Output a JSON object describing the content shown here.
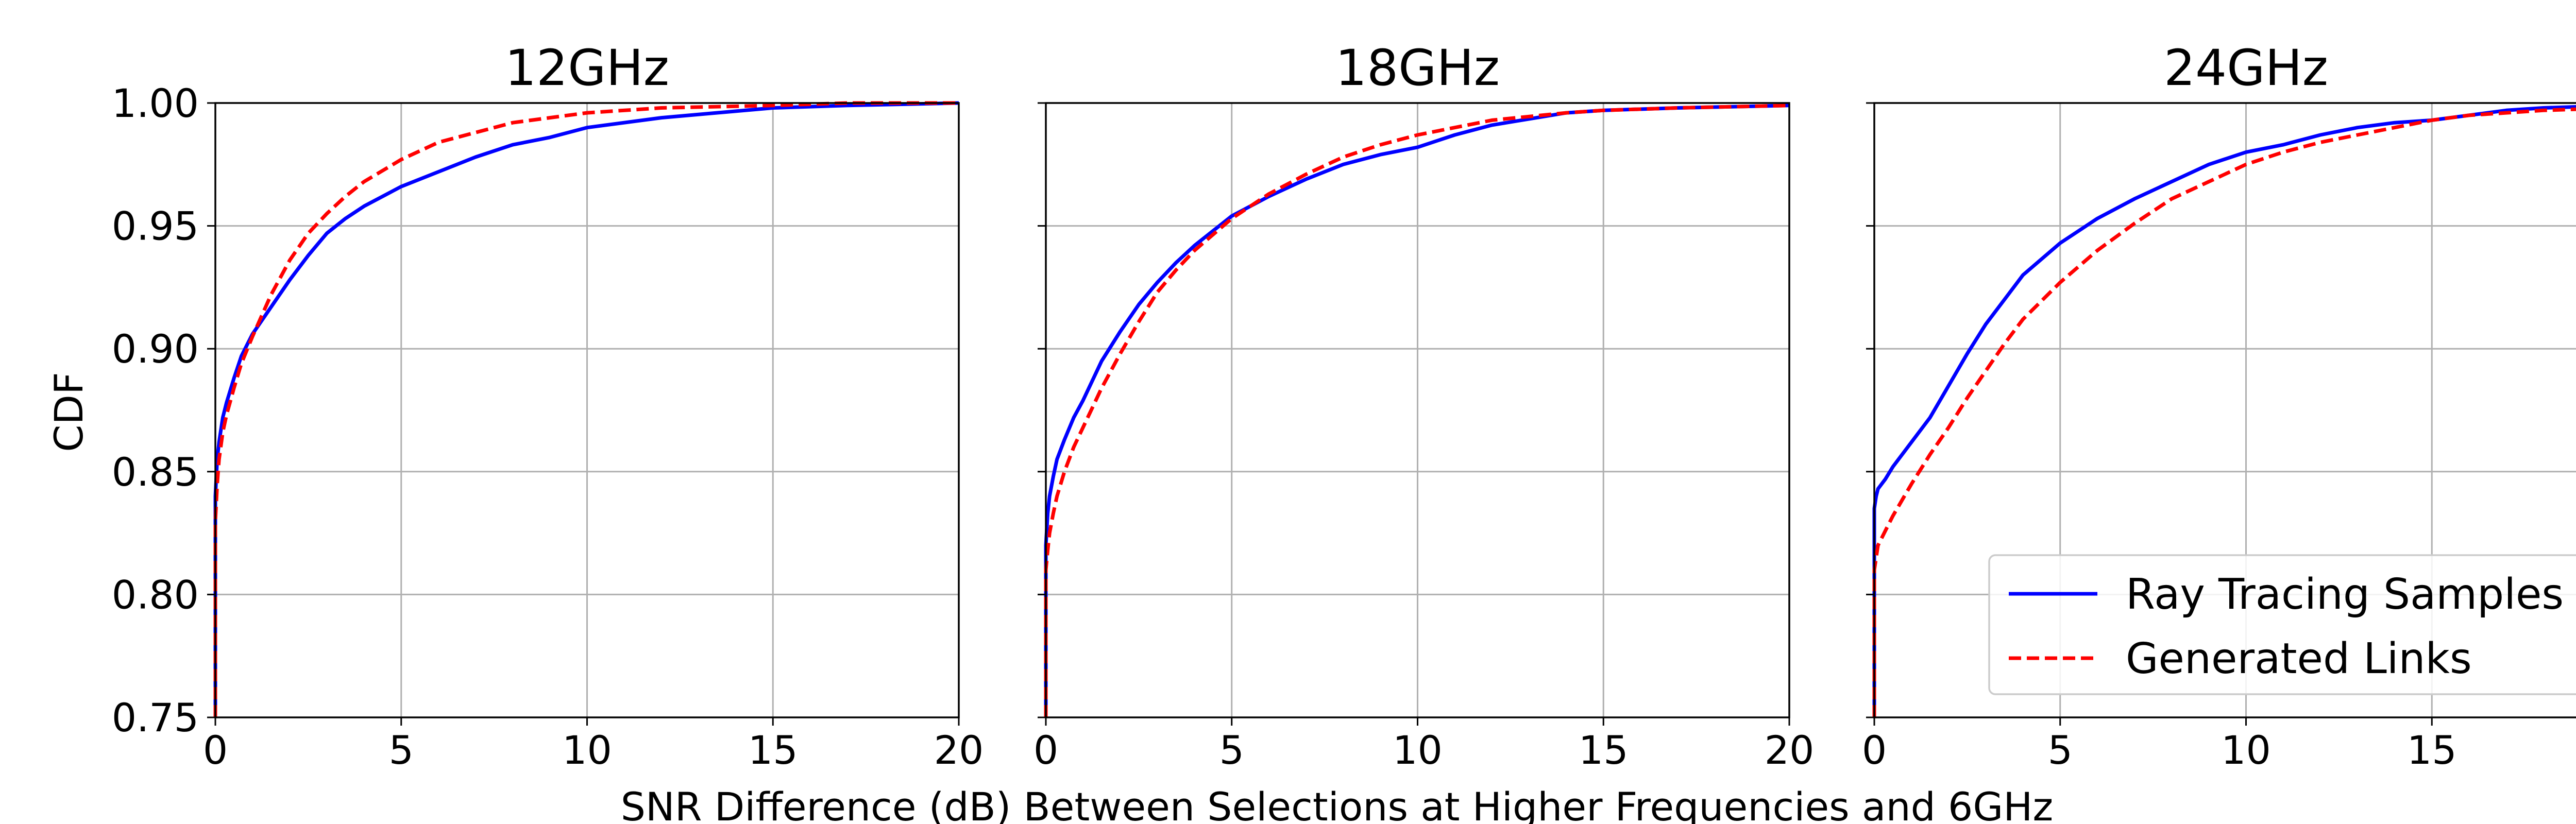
{
  "chart_data": {
    "type": "line",
    "xlabel": "SNR Difference (dB) Between Selections at Higher Frequencies and 6GHz",
    "ylabel": "CDF",
    "xlim": [
      0,
      20
    ],
    "ylim": [
      0.75,
      1.0
    ],
    "xticks": [
      "0",
      "5",
      "10",
      "15",
      "20"
    ],
    "yticks": [
      "0.75",
      "0.80",
      "0.85",
      "0.90",
      "0.95",
      "1.00"
    ],
    "grid": true,
    "sharey": true,
    "legend": {
      "placement": "lower-right",
      "panel": 2,
      "entries": [
        "Ray Tracing Samples",
        "Generated Links"
      ]
    },
    "series_styles": [
      {
        "name": "Ray Tracing Samples",
        "color": "#0000ff",
        "dash": "solid"
      },
      {
        "name": "Generated Links",
        "color": "#ff0000",
        "dash": "dashed"
      }
    ],
    "panels": [
      {
        "title": "12GHz",
        "series": [
          {
            "name": "Ray Tracing Samples",
            "x": [
              0,
              0,
              0.05,
              0.1,
              0.2,
              0.3,
              0.5,
              0.7,
              1.0,
              1.5,
              2.0,
              2.5,
              3.0,
              3.5,
              4.0,
              5.0,
              6.0,
              7.0,
              8.0,
              9.0,
              10.0,
              12.0,
              15.0,
              17.0,
              20.0
            ],
            "y": [
              0.75,
              0.84,
              0.855,
              0.862,
              0.872,
              0.878,
              0.888,
              0.897,
              0.906,
              0.917,
              0.928,
              0.938,
              0.947,
              0.953,
              0.958,
              0.966,
              0.972,
              0.978,
              0.983,
              0.986,
              0.99,
              0.994,
              0.998,
              0.999,
              1.0
            ]
          },
          {
            "name": "Generated Links",
            "x": [
              0,
              0,
              0.05,
              0.1,
              0.2,
              0.3,
              0.5,
              0.7,
              1.0,
              1.5,
              2.0,
              2.5,
              3.0,
              3.5,
              4.0,
              5.0,
              6.0,
              7.0,
              8.0,
              9.0,
              10.0,
              12.0,
              15.0,
              17.0,
              20.0
            ],
            "y": [
              0.75,
              0.83,
              0.845,
              0.855,
              0.866,
              0.873,
              0.884,
              0.894,
              0.905,
              0.922,
              0.936,
              0.947,
              0.955,
              0.962,
              0.968,
              0.977,
              0.984,
              0.988,
              0.992,
              0.994,
              0.996,
              0.998,
              0.999,
              1.0,
              1.0
            ]
          }
        ]
      },
      {
        "title": "18GHz",
        "series": [
          {
            "name": "Ray Tracing Samples",
            "x": [
              0,
              0,
              0.05,
              0.1,
              0.2,
              0.3,
              0.5,
              0.75,
              1.0,
              1.5,
              2.0,
              2.5,
              3.0,
              3.5,
              4.0,
              5.0,
              6.0,
              7.0,
              8.0,
              9.0,
              10.0,
              11.0,
              12.0,
              14.0,
              15.0,
              17.0,
              20.0
            ],
            "y": [
              0.75,
              0.82,
              0.833,
              0.84,
              0.848,
              0.855,
              0.863,
              0.872,
              0.879,
              0.895,
              0.907,
              0.918,
              0.927,
              0.935,
              0.942,
              0.954,
              0.962,
              0.969,
              0.975,
              0.979,
              0.982,
              0.987,
              0.991,
              0.996,
              0.997,
              0.998,
              0.999
            ]
          },
          {
            "name": "Generated Links",
            "x": [
              0,
              0,
              0.05,
              0.1,
              0.2,
              0.3,
              0.5,
              0.75,
              1.0,
              1.5,
              2.0,
              2.5,
              3.0,
              3.5,
              4.0,
              5.0,
              6.0,
              7.0,
              8.0,
              9.0,
              10.0,
              11.0,
              12.0,
              14.0,
              15.0,
              17.0,
              20.0
            ],
            "y": [
              0.75,
              0.81,
              0.818,
              0.825,
              0.833,
              0.84,
              0.85,
              0.86,
              0.868,
              0.884,
              0.898,
              0.911,
              0.923,
              0.932,
              0.94,
              0.953,
              0.963,
              0.971,
              0.978,
              0.983,
              0.987,
              0.99,
              0.993,
              0.996,
              0.997,
              0.998,
              0.999
            ]
          }
        ]
      },
      {
        "title": "24GHz",
        "series": [
          {
            "name": "Ray Tracing Samples",
            "x": [
              0,
              0,
              0.05,
              0.1,
              0.3,
              0.5,
              1.0,
              1.5,
              2.0,
              2.5,
              3.0,
              3.5,
              4.0,
              5.0,
              6.0,
              7.0,
              8.0,
              9.0,
              10.0,
              11.0,
              12.0,
              13.0,
              14.0,
              15.0,
              16.0,
              17.0,
              18.0,
              20.0
            ],
            "y": [
              0.75,
              0.835,
              0.84,
              0.843,
              0.847,
              0.852,
              0.862,
              0.872,
              0.885,
              0.898,
              0.91,
              0.92,
              0.93,
              0.943,
              0.953,
              0.961,
              0.968,
              0.975,
              0.98,
              0.983,
              0.987,
              0.99,
              0.992,
              0.993,
              0.995,
              0.997,
              0.998,
              0.999
            ]
          },
          {
            "name": "Generated Links",
            "x": [
              0,
              0,
              0.05,
              0.1,
              0.3,
              0.5,
              1.0,
              1.5,
              2.0,
              2.5,
              3.0,
              3.5,
              4.0,
              5.0,
              6.0,
              7.0,
              8.0,
              9.0,
              10.0,
              11.0,
              12.0,
              13.0,
              14.0,
              15.0,
              16.0,
              17.0,
              18.0,
              20.0
            ],
            "y": [
              0.75,
              0.81,
              0.815,
              0.82,
              0.826,
              0.832,
              0.845,
              0.857,
              0.868,
              0.88,
              0.891,
              0.902,
              0.912,
              0.927,
              0.94,
              0.951,
              0.961,
              0.968,
              0.975,
              0.98,
              0.984,
              0.987,
              0.99,
              0.993,
              0.995,
              0.996,
              0.997,
              0.998
            ]
          }
        ]
      }
    ]
  }
}
